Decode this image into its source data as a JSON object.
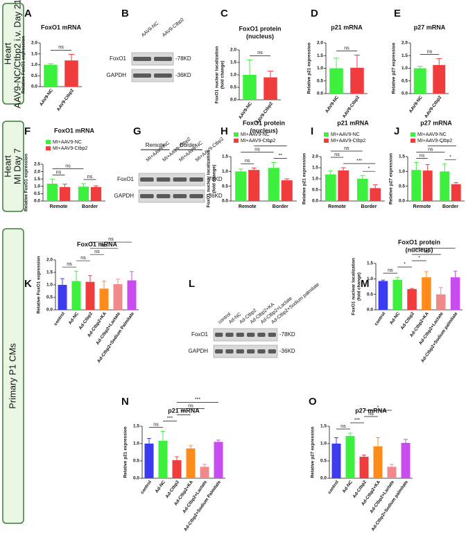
{
  "side_labels": [
    [
      "Heart",
      "AAV9-NC/Ctbp2 i.v.   Day 21"
    ],
    [
      "Heart",
      "MI   Day 7"
    ],
    [
      "Primary   P1   CMs"
    ]
  ],
  "blots": [
    {
      "panel": "B",
      "lanes": [
        "AAV9-NC",
        "AAV9-Ctbp2"
      ],
      "rows": [
        {
          "label": "FoxO1",
          "size": "-78KD"
        },
        {
          "label": "GAPDH",
          "size": "-36KD"
        }
      ]
    },
    {
      "panel": "G",
      "groups": [
        "Remote",
        "Border"
      ],
      "lanes": [
        "MI+AAV9-NC",
        "MI+AAV9-Ctbp2",
        "MI+AAV9-NC",
        "MI+AAV9-Ctbp2"
      ],
      "rows": [
        {
          "label": "FoxO1",
          "size": "-78KD"
        },
        {
          "label": "GAPDH",
          "size": "-36KD"
        }
      ]
    },
    {
      "panel": "L",
      "lanes": [
        "control",
        "Ad-NC",
        "Ad-Ctbp2",
        "Ad-Ctbp2+KA",
        "Ad-Ctbp2+Lactate",
        "Ad-Ctbp2+Sodium palmitate"
      ],
      "rows": [
        {
          "label": "FoxO1",
          "size": "-78KD"
        },
        {
          "label": "GAPDH",
          "size": "-36KD"
        }
      ]
    }
  ],
  "chart_data": [
    {
      "type": "bar",
      "panel": "A",
      "title": "FoxO1 mRNA",
      "ylabel": "Relative FoxO1 expression",
      "categories": [
        "AAV9-NC",
        "AAV9-Ctbp2"
      ],
      "values": [
        1.0,
        1.2
      ],
      "errors": [
        0.05,
        0.28
      ],
      "colors": [
        "#3df03d",
        "#f03c3c"
      ],
      "ylim": [
        0,
        2
      ],
      "yticks": [
        {
          "value": 0,
          "label": "0.0"
        },
        0.5,
        {
          "value": 1,
          "label": "1.0"
        },
        1.5,
        {
          "value": 2,
          "label": "2.0"
        }
      ],
      "annotations": [
        {
          "bars": [
            0,
            1
          ],
          "label": "ns"
        }
      ]
    },
    {
      "type": "bar",
      "panel": "C",
      "title": "FoxO1 protein",
      "subtitle": "(nucleus)",
      "ylabel": [
        "FoxO1 nuclear localization",
        "(fold change)"
      ],
      "categories": [
        "AAV9-NC",
        "AAV9-Ctbp2"
      ],
      "values": [
        1.0,
        0.9
      ],
      "errors": [
        0.6,
        0.25
      ],
      "colors": [
        "#3df03d",
        "#f03c3c"
      ],
      "ylim": [
        0,
        2
      ],
      "yticks": [
        {
          "value": 0,
          "label": "0.0"
        },
        0.5,
        {
          "value": 1,
          "label": "1.0"
        },
        1.5,
        {
          "value": 2,
          "label": "2.0"
        }
      ],
      "annotations": [
        {
          "bars": [
            0,
            1
          ],
          "label": "ns"
        }
      ]
    },
    {
      "type": "bar",
      "panel": "D",
      "title": "p21 mRNA",
      "ylabel": "Relative p21 expression",
      "categories": [
        "AAV9-NC",
        "AAV9-Ctbp2"
      ],
      "values": [
        1.0,
        1.02
      ],
      "errors": [
        0.4,
        0.5
      ],
      "colors": [
        "#3df03d",
        "#f03c3c"
      ],
      "ylim": [
        0,
        2
      ],
      "yticks": [
        {
          "value": 0,
          "label": "0.0"
        },
        0.5,
        {
          "value": 1,
          "label": "1.0"
        },
        1.5,
        {
          "value": 2,
          "label": "2.0"
        }
      ],
      "annotations": [
        {
          "bars": [
            0,
            1
          ],
          "label": "ns"
        }
      ]
    },
    {
      "type": "bar",
      "panel": "E",
      "title": "p27 mRNA",
      "ylabel": "Relative p27 expression",
      "categories": [
        "AAV9-NC",
        "AAV9-Ctbp2"
      ],
      "values": [
        1.0,
        1.13
      ],
      "errors": [
        0.08,
        0.25
      ],
      "colors": [
        "#3df03d",
        "#f03c3c"
      ],
      "ylim": [
        0,
        2
      ],
      "yticks": [
        {
          "value": 0,
          "label": "0.0"
        },
        0.5,
        {
          "value": 1,
          "label": "1.0"
        },
        1.5,
        {
          "value": 2,
          "label": "2.0"
        }
      ],
      "annotations": [
        {
          "bars": [
            0,
            1
          ],
          "label": "ns"
        }
      ]
    },
    {
      "type": "bar",
      "panel": "F",
      "title": "FoxO1 mRNA",
      "ylabel": "Relative FoxO1 expression",
      "categories": [
        "Remote",
        "Border"
      ],
      "series": [
        {
          "name": "MI+AAV9-NC",
          "color": "#3df03d",
          "values": [
            1.18,
            0.98
          ],
          "errors": [
            0.3,
            0.2
          ]
        },
        {
          "name": "MI+AAV9-Ctbp2",
          "color": "#f03c3c",
          "values": [
            0.95,
            0.95
          ],
          "errors": [
            0.2,
            0.08
          ]
        }
      ],
      "ylim": [
        0,
        2.5
      ],
      "yticks": [
        {
          "value": 0,
          "label": "0.0"
        },
        0.5,
        {
          "value": 1,
          "label": "1.0"
        },
        1.5,
        {
          "value": 2,
          "label": "2.0"
        },
        2.5
      ],
      "annotations": [
        {
          "bars": [
            0,
            1
          ],
          "label": "ns"
        },
        {
          "bars": [
            2,
            3
          ],
          "label": "ns"
        },
        {
          "bars": [
            0,
            2
          ],
          "label": "ns"
        }
      ]
    },
    {
      "type": "bar",
      "panel": "H",
      "title": "FoxO1 protein",
      "subtitle": "(nucleus)",
      "ylabel": [
        "FoxO1 nuclear localization",
        "(fold change)"
      ],
      "categories": [
        "Remote",
        "Border"
      ],
      "series": [
        {
          "name": "MI+AAV9-NC",
          "color": "#3df03d",
          "values": [
            1.0,
            1.12
          ],
          "errors": [
            0.08,
            0.18
          ]
        },
        {
          "name": "MI+AAV9-Ctbp2",
          "color": "#f03c3c",
          "values": [
            1.05,
            0.7
          ],
          "errors": [
            0.07,
            0.05
          ]
        }
      ],
      "ylim": [
        0,
        1.5
      ],
      "yticks": [
        {
          "value": 0,
          "label": "0.0"
        },
        0.5,
        {
          "value": 1,
          "label": "1.0"
        },
        1.5
      ],
      "annotations": [
        {
          "bars": [
            0,
            1
          ],
          "label": "ns"
        },
        {
          "bars": [
            2,
            3
          ],
          "label": "**"
        },
        {
          "bars": [
            0,
            2
          ],
          "label": "ns"
        },
        {
          "bars": [
            1,
            3
          ],
          "label": "*"
        }
      ]
    },
    {
      "type": "bar",
      "panel": "I",
      "title": "p21 mRNA",
      "ylabel": "Relative p21 expression",
      "categories": [
        "Remote",
        "Border"
      ],
      "series": [
        {
          "name": "MI+AAV9-NC",
          "color": "#3df03d",
          "values": [
            1.2,
            1.0
          ],
          "errors": [
            0.15,
            0.15
          ]
        },
        {
          "name": "MI+AAV9-Ctbp2",
          "color": "#f03c3c",
          "values": [
            1.38,
            0.58
          ],
          "errors": [
            0.12,
            0.15
          ]
        }
      ],
      "ylim": [
        0,
        2
      ],
      "yticks": [
        {
          "value": 0,
          "label": "0.0"
        },
        0.5,
        {
          "value": 1,
          "label": "1.0"
        },
        1.5,
        {
          "value": 2,
          "label": "2.0"
        }
      ],
      "annotations": [
        {
          "bars": [
            2,
            3
          ],
          "label": "*"
        },
        {
          "bars": [
            1,
            3
          ],
          "label": "***"
        },
        {
          "bars": [
            0,
            1
          ],
          "label": "ns"
        },
        {
          "bars": [
            0,
            2
          ],
          "label": "ns"
        }
      ]
    },
    {
      "type": "bar",
      "panel": "J",
      "title": "p27 mRNA",
      "ylabel": "Relative p27 expression",
      "categories": [
        "Remote",
        "Border"
      ],
      "series": [
        {
          "name": "MI+AAV9-NC",
          "color": "#3df03d",
          "values": [
            1.05,
            1.0
          ],
          "errors": [
            0.25,
            0.25
          ]
        },
        {
          "name": "MI+AAV9-Ctbp2",
          "color": "#f03c3c",
          "values": [
            1.03,
            0.57
          ],
          "errors": [
            0.2,
            0.05
          ]
        }
      ],
      "ylim": [
        0,
        1.5
      ],
      "yticks": [
        {
          "value": 0,
          "label": "0.0"
        },
        0.5,
        {
          "value": 1,
          "label": "1.0"
        },
        1.5
      ],
      "annotations": [
        {
          "bars": [
            2,
            3
          ],
          "label": "*"
        },
        {
          "bars": [
            0,
            1
          ],
          "label": "ns"
        },
        {
          "bars": [
            0,
            2
          ],
          "label": "ns"
        },
        {
          "bars": [
            1,
            3
          ],
          "label": "*"
        }
      ]
    },
    {
      "type": "bar",
      "panel": "K",
      "title": "FoxO1 mRNA",
      "ylabel": "Relative FoxO1 expression",
      "categories": [
        "control",
        "Ad-NC",
        "Ad-Ctbp2",
        "Ad-Ctbp2+KA",
        "Ad-Ctbp2+Lactate",
        "Ad-Ctbp2+Sodium Palmitate"
      ],
      "values": [
        1.0,
        1.15,
        1.12,
        0.85,
        1.03,
        1.18
      ],
      "errors": [
        0.25,
        0.4,
        0.25,
        0.3,
        0.2,
        0.35
      ],
      "colors": [
        "#3b3bf0",
        "#3df03d",
        "#f03c3c",
        "#ff8c1a",
        "#f08a8a",
        "#c84cf0"
      ],
      "ylim": [
        0,
        2
      ],
      "yticks": [
        {
          "value": 0,
          "label": "0.0"
        },
        0.5,
        {
          "value": 1,
          "label": "1.0"
        },
        1.5,
        {
          "value": 2,
          "label": "2.0"
        }
      ],
      "annotations": [
        {
          "bars": [
            0,
            1
          ],
          "label": "ns"
        },
        {
          "bars": [
            1,
            2
          ],
          "label": "ns"
        },
        {
          "bars": [
            2,
            3
          ],
          "label": "ns"
        },
        {
          "bars": [
            2,
            4
          ],
          "label": "ns"
        },
        {
          "bars": [
            2,
            5
          ],
          "label": "ns"
        }
      ]
    },
    {
      "type": "bar",
      "panel": "M",
      "title": "FoxO1 protein",
      "subtitle": "(nucleus)",
      "ylabel": [
        "FoxO1 nuclear localization",
        "(fold change)"
      ],
      "categories": [
        "control",
        "Ad-NC",
        "Ad-Ctbp2",
        "Ad-Ctbp2+KA",
        "Ad-Ctbp2+Lactate",
        "Ad-Ctbp2+Sodium palmitate"
      ],
      "values": [
        0.93,
        0.97,
        0.67,
        1.05,
        0.5,
        1.05
      ],
      "errors": [
        0.03,
        0.08,
        0.02,
        0.18,
        0.22,
        0.2
      ],
      "colors": [
        "#3b3bf0",
        "#3df03d",
        "#f03c3c",
        "#ff8c1a",
        "#f08a8a",
        "#c84cf0"
      ],
      "ylim": [
        0,
        1.5
      ],
      "yticks": [
        {
          "value": 0,
          "label": "0.0"
        },
        0.5,
        {
          "value": 1,
          "label": "1.0"
        },
        1.5
      ],
      "annotations": [
        {
          "bars": [
            0,
            1
          ],
          "label": "ns"
        },
        {
          "bars": [
            1,
            2
          ],
          "label": "*"
        },
        {
          "bars": [
            2,
            3
          ],
          "label": "*"
        },
        {
          "bars": [
            2,
            4
          ],
          "label": "ns"
        },
        {
          "bars": [
            2,
            5
          ],
          "label": "*"
        }
      ]
    },
    {
      "type": "bar",
      "panel": "N",
      "title": "p21 mRNA",
      "ylabel": "Relative p21 expression",
      "categories": [
        "control",
        "Ad-NC",
        "Ad-Ctbp2",
        "Ad-Ctbp2+KA",
        "Ad-Ctbp2+Lactate",
        "Ad-Ctbp2+Sodium Palmitate"
      ],
      "values": [
        1.0,
        1.08,
        0.52,
        0.86,
        0.33,
        1.05
      ],
      "errors": [
        0.15,
        0.27,
        0.1,
        0.08,
        0.07,
        0.05
      ],
      "colors": [
        "#3b3bf0",
        "#3df03d",
        "#f03c3c",
        "#ff8c1a",
        "#f08a8a",
        "#c84cf0"
      ],
      "ylim": [
        0,
        1.5
      ],
      "yticks": [
        {
          "value": 0,
          "label": "0.0"
        },
        0.5,
        {
          "value": 1,
          "label": "1.0"
        },
        1.5
      ],
      "annotations": [
        {
          "bars": [
            0,
            1
          ],
          "label": "ns"
        },
        {
          "bars": [
            1,
            2
          ],
          "label": "***"
        },
        {
          "bars": [
            2,
            3
          ],
          "label": "**"
        },
        {
          "bars": [
            2,
            4
          ],
          "label": "ns"
        },
        {
          "bars": [
            2,
            5
          ],
          "label": "***"
        }
      ]
    },
    {
      "type": "bar",
      "panel": "O",
      "title": "p27 mRNA",
      "ylabel": "Relative p27 expression",
      "categories": [
        "control",
        "Ad-NC",
        "Ad-Ctbp2",
        "Ad-Ctbp2+KA",
        "Ad-Ctbp2+Lactate",
        "Ad-Ctbp2+Sodium palmitate"
      ],
      "values": [
        1.0,
        1.22,
        0.62,
        0.92,
        0.33,
        1.02
      ],
      "errors": [
        0.17,
        0.08,
        0.05,
        0.25,
        0.07,
        0.1
      ],
      "colors": [
        "#3b3bf0",
        "#3df03d",
        "#f03c3c",
        "#ff8c1a",
        "#f08a8a",
        "#c84cf0"
      ],
      "ylim": [
        0,
        1.5
      ],
      "yticks": [
        {
          "value": 0,
          "label": "0.0"
        },
        0.5,
        {
          "value": 1,
          "label": "1.0"
        },
        1.5
      ],
      "annotations": [
        {
          "bars": [
            0,
            1
          ],
          "label": "ns"
        },
        {
          "bars": [
            1,
            2
          ],
          "label": "***"
        },
        {
          "bars": [
            2,
            3
          ],
          "label": "ns"
        },
        {
          "bars": [
            2,
            4
          ],
          "label": "*"
        }
      ]
    }
  ]
}
